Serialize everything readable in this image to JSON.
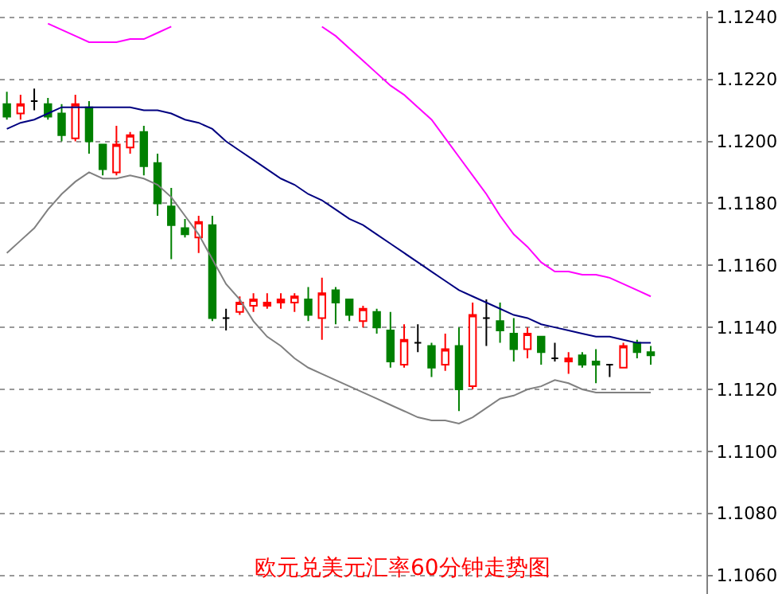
{
  "chart_data": {
    "type": "candlestick",
    "title": "欧元兑美元汇率60分钟走势图",
    "categories": [
      null,
      null,
      null,
      null,
      null,
      null,
      null,
      null,
      null,
      null,
      null,
      null,
      null,
      null,
      null,
      null,
      null,
      null,
      null,
      null,
      null,
      null,
      null,
      null,
      null,
      null,
      null,
      null,
      null,
      null,
      null,
      null,
      null,
      null,
      null,
      null,
      null,
      null,
      null,
      null,
      null,
      null,
      null,
      null,
      null,
      null,
      null,
      null
    ],
    "ohlc": [
      [
        1.1212,
        1.1216,
        1.1207,
        1.1208
      ],
      [
        1.1209,
        1.1215,
        1.1207,
        1.1212
      ],
      [
        1.1213,
        1.1217,
        1.121,
        1.1213
      ],
      [
        1.1212,
        1.1214,
        1.1207,
        1.1208
      ],
      [
        1.1209,
        1.1212,
        1.12,
        1.1202
      ],
      [
        1.1201,
        1.1215,
        1.12,
        1.1212
      ],
      [
        1.1211,
        1.1213,
        1.1196,
        1.12
      ],
      [
        1.1199,
        1.1199,
        1.1189,
        1.1191
      ],
      [
        1.119,
        1.1205,
        1.1189,
        1.1199
      ],
      [
        1.1198,
        1.1203,
        1.1196,
        1.1202
      ],
      [
        1.1203,
        1.1205,
        1.1189,
        1.1192
      ],
      [
        1.1193,
        1.1196,
        1.1176,
        1.118
      ],
      [
        1.1179,
        1.1185,
        1.1162,
        1.1173
      ],
      [
        1.1172,
        1.1175,
        1.1169,
        1.117
      ],
      [
        1.1169,
        1.1176,
        1.1164,
        1.1174
      ],
      [
        1.1173,
        1.1176,
        1.1142,
        1.1143
      ],
      [
        1.1143,
        1.1146,
        1.1139,
        1.1143
      ],
      [
        1.1145,
        1.115,
        1.1144,
        1.1148
      ],
      [
        1.1147,
        1.1151,
        1.1145,
        1.1149
      ],
      [
        1.1147,
        1.1151,
        1.1146,
        1.1148
      ],
      [
        1.1148,
        1.1151,
        1.1146,
        1.1149
      ],
      [
        1.1148,
        1.1151,
        1.1145,
        1.115
      ],
      [
        1.1149,
        1.1153,
        1.1142,
        1.1144
      ],
      [
        1.1143,
        1.1156,
        1.1136,
        1.1151
      ],
      [
        1.1152,
        1.1153,
        1.1141,
        1.1148
      ],
      [
        1.1149,
        1.1149,
        1.1142,
        1.1144
      ],
      [
        1.1142,
        1.1147,
        1.114,
        1.1146
      ],
      [
        1.1145,
        1.1146,
        1.1138,
        1.114
      ],
      [
        1.1139,
        1.1145,
        1.1127,
        1.1129
      ],
      [
        1.1128,
        1.1141,
        1.1127,
        1.1136
      ],
      [
        1.1135,
        1.1141,
        1.1132,
        1.1135
      ],
      [
        1.1134,
        1.1135,
        1.1124,
        1.1127
      ],
      [
        1.1128,
        1.1138,
        1.1126,
        1.1133
      ],
      [
        1.1134,
        1.114,
        1.1113,
        1.112
      ],
      [
        1.1121,
        1.1148,
        1.112,
        1.1144
      ],
      [
        1.1143,
        1.1149,
        1.1134,
        1.1143
      ],
      [
        1.1142,
        1.1148,
        1.1135,
        1.1139
      ],
      [
        1.1138,
        1.1143,
        1.1129,
        1.1133
      ],
      [
        1.1133,
        1.114,
        1.113,
        1.1138
      ],
      [
        1.1137,
        1.1137,
        1.1128,
        1.1132
      ],
      [
        1.113,
        1.1135,
        1.1129,
        1.113
      ],
      [
        1.1129,
        1.1132,
        1.1125,
        1.113
      ],
      [
        1.1131,
        1.1132,
        1.1127,
        1.1128
      ],
      [
        1.1129,
        1.1133,
        1.1122,
        1.1128
      ],
      [
        1.1128,
        1.1128,
        1.1124,
        1.1128
      ],
      [
        1.1127,
        1.1135,
        1.1127,
        1.1134
      ],
      [
        1.1135,
        1.1136,
        1.113,
        1.1132
      ],
      [
        1.1132,
        1.1134,
        1.1128,
        1.1131
      ]
    ],
    "colors": [
      "#008000",
      "#ff0000",
      "#000000",
      "#008000",
      "#008000",
      "#ff0000",
      "#008000",
      "#008000",
      "#ff0000",
      "#ff0000",
      "#008000",
      "#008000",
      "#008000",
      "#008000",
      "#ff0000",
      "#008000",
      "#000000",
      "#ff0000",
      "#ff0000",
      "#ff0000",
      "#ff0000",
      "#ff0000",
      "#008000",
      "#ff0000",
      "#008000",
      "#008000",
      "#ff0000",
      "#008000",
      "#008000",
      "#ff0000",
      "#000000",
      "#008000",
      "#ff0000",
      "#008000",
      "#ff0000",
      "#000000",
      "#008000",
      "#008000",
      "#ff0000",
      "#008000",
      "#000000",
      "#ff0000",
      "#008000",
      "#008000",
      "#000000",
      "#ff0000",
      "#008000",
      "#008000"
    ],
    "series": [
      {
        "type": "line",
        "color": "#000080",
        "values": [
          1.1204,
          1.1206,
          1.1207,
          1.1209,
          1.1211,
          1.1211,
          1.1211,
          1.1211,
          1.1211,
          1.1211,
          1.121,
          1.121,
          1.1209,
          1.1207,
          1.1206,
          1.1204,
          1.12,
          1.1197,
          1.1194,
          1.1191,
          1.1188,
          1.1186,
          1.1183,
          1.1181,
          1.1178,
          1.1175,
          1.1173,
          1.117,
          1.1167,
          1.1164,
          1.1161,
          1.1158,
          1.1155,
          1.1152,
          1.115,
          1.1148,
          1.1146,
          1.1144,
          1.1143,
          1.1141,
          1.114,
          1.1139,
          1.1138,
          1.1137,
          1.1137,
          1.1136,
          1.1135,
          1.1135
        ]
      },
      {
        "type": "line",
        "color": "#808080",
        "values": [
          1.1164,
          1.1168,
          1.1172,
          1.1178,
          1.1183,
          1.1187,
          1.119,
          1.1188,
          1.1188,
          1.1189,
          1.1188,
          1.1186,
          1.1182,
          1.1176,
          1.117,
          1.1162,
          1.1154,
          1.1149,
          1.1142,
          1.1137,
          1.1134,
          1.113,
          1.1127,
          1.1125,
          1.1123,
          1.1121,
          1.1119,
          1.1117,
          1.1115,
          1.1113,
          1.1111,
          1.111,
          1.111,
          1.1109,
          1.1111,
          1.1114,
          1.1117,
          1.1118,
          1.112,
          1.1121,
          1.1123,
          1.1122,
          1.112,
          1.1119,
          1.1119,
          1.1119,
          1.1119,
          1.1119
        ]
      },
      {
        "type": "line",
        "color": "#ff00ff",
        "values": [
          null,
          null,
          null,
          1.1238,
          1.1236,
          1.1234,
          1.1232,
          1.1232,
          1.1232,
          1.1233,
          1.1233,
          1.1235,
          1.1237,
          null,
          null,
          null,
          null,
          null,
          null,
          null,
          null,
          null,
          null,
          1.1237,
          1.1234,
          1.123,
          1.1226,
          1.1222,
          1.1218,
          1.1215,
          1.1211,
          1.1207,
          1.1201,
          1.1195,
          1.1189,
          1.1183,
          1.1176,
          1.117,
          1.1166,
          1.1161,
          1.1158,
          1.1158,
          1.1157,
          1.1157,
          1.1156,
          1.1154,
          1.1152,
          1.115
        ]
      }
    ],
    "ylim": [
      1.1054,
      1.1242
    ],
    "yticks": [
      {
        "value": 1.106,
        "label": "1.1060"
      },
      {
        "value": 1.108,
        "label": "1.1080"
      },
      {
        "value": 1.11,
        "label": "1.1100"
      },
      {
        "value": 1.112,
        "label": "1.1120"
      },
      {
        "value": 1.114,
        "label": "1.1140"
      },
      {
        "value": 1.116,
        "label": "1.1160"
      },
      {
        "value": 1.118,
        "label": "1.1180"
      },
      {
        "value": 1.12,
        "label": "1.1200"
      },
      {
        "value": 1.122,
        "label": "1.1220"
      },
      {
        "value": 1.124,
        "label": "1.1240"
      }
    ],
    "grid": "y",
    "tick_labels": "y"
  }
}
